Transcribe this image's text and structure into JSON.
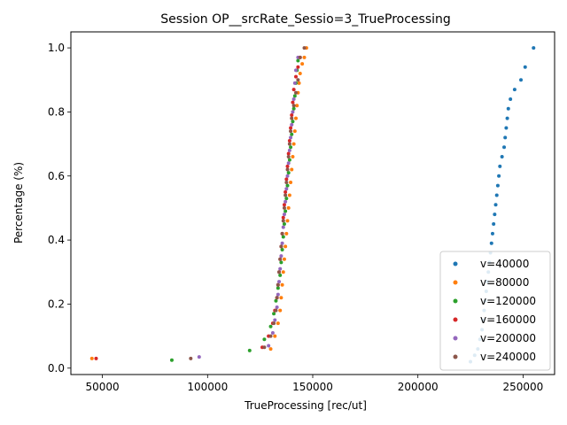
{
  "chart_data": {
    "type": "scatter",
    "title": "Session OP__srcRate_Sessio=3_TrueProcessing",
    "xlabel": "TrueProcessing [rec/ut]",
    "ylabel": "Percentage (%)",
    "xlim": [
      35000,
      265000
    ],
    "ylim": [
      -0.02,
      1.05
    ],
    "xticks": [
      50000,
      100000,
      150000,
      200000,
      250000
    ],
    "xtick_labels": [
      "50000",
      "100000",
      "150000",
      "200000",
      "250000"
    ],
    "yticks": [
      0.0,
      0.2,
      0.4,
      0.6,
      0.8,
      1.0
    ],
    "ytick_labels": [
      "0.0",
      "0.2",
      "0.4",
      "0.6",
      "0.8",
      "1.0"
    ],
    "grid": false,
    "legend_position": "lower-right",
    "series": [
      {
        "name": "v=40000",
        "color": "#1f77b4",
        "x": [
          225000,
          227000,
          228500,
          229500,
          230500,
          231000,
          231500,
          232000,
          232500,
          233000,
          233500,
          234000,
          234500,
          235000,
          235500,
          236000,
          236500,
          237000,
          237500,
          238000,
          238500,
          239000,
          240000,
          241000,
          241500,
          242000,
          242500,
          243000,
          244000,
          246000,
          249000,
          251000,
          255000
        ],
        "y": [
          0.02,
          0.04,
          0.06,
          0.09,
          0.12,
          0.15,
          0.18,
          0.21,
          0.24,
          0.27,
          0.3,
          0.33,
          0.36,
          0.39,
          0.42,
          0.45,
          0.48,
          0.51,
          0.54,
          0.57,
          0.6,
          0.63,
          0.66,
          0.69,
          0.72,
          0.75,
          0.78,
          0.81,
          0.84,
          0.87,
          0.9,
          0.94,
          1.0
        ]
      },
      {
        "name": "v=80000",
        "color": "#ff7f0e",
        "x": [
          45000,
          130000,
          132000,
          133500,
          134500,
          135000,
          135500,
          136000,
          136500,
          137000,
          137500,
          138000,
          138500,
          139000,
          139500,
          140000,
          140500,
          141000,
          141500,
          142000,
          142500,
          143000,
          143500,
          144000,
          145000,
          146000,
          147000
        ],
        "y": [
          0.03,
          0.06,
          0.1,
          0.14,
          0.18,
          0.22,
          0.26,
          0.3,
          0.34,
          0.38,
          0.42,
          0.46,
          0.5,
          0.54,
          0.58,
          0.62,
          0.66,
          0.7,
          0.74,
          0.78,
          0.82,
          0.86,
          0.89,
          0.92,
          0.95,
          0.97,
          1.0
        ]
      },
      {
        "name": "v=120000",
        "color": "#2ca02c",
        "x": [
          83000,
          120000,
          127000,
          130000,
          131500,
          132500,
          133500,
          134500,
          135000,
          135500,
          136000,
          136500,
          137000,
          137500,
          138000,
          138500,
          139000,
          139500,
          140000,
          140500,
          141000,
          141500,
          142000,
          142500,
          143000
        ],
        "y": [
          0.025,
          0.055,
          0.09,
          0.13,
          0.17,
          0.21,
          0.25,
          0.29,
          0.33,
          0.37,
          0.41,
          0.45,
          0.49,
          0.53,
          0.57,
          0.61,
          0.65,
          0.69,
          0.73,
          0.77,
          0.81,
          0.85,
          0.89,
          0.93,
          0.96
        ]
      },
      {
        "name": "v=160000",
        "color": "#d62728",
        "x": [
          47000,
          126000,
          129000,
          131000,
          132000,
          133000,
          133500,
          134000,
          134500,
          135000,
          135500,
          136000,
          136500,
          137000,
          137500,
          138000,
          138500,
          139000,
          139500,
          140000,
          140500,
          141000,
          142000,
          143000,
          144000
        ],
        "y": [
          0.03,
          0.065,
          0.1,
          0.14,
          0.18,
          0.22,
          0.26,
          0.3,
          0.34,
          0.38,
          0.42,
          0.47,
          0.51,
          0.55,
          0.59,
          0.63,
          0.67,
          0.71,
          0.75,
          0.79,
          0.83,
          0.87,
          0.91,
          0.94,
          0.97
        ]
      },
      {
        "name": "v=200000",
        "color": "#9467bd",
        "x": [
          96000,
          129000,
          131000,
          132000,
          133000,
          133500,
          134000,
          134500,
          135000,
          135500,
          136000,
          136500,
          137000,
          137500,
          138000,
          138500,
          139000,
          139500,
          140000,
          140500,
          141000,
          141500,
          142000,
          143000
        ],
        "y": [
          0.035,
          0.07,
          0.11,
          0.15,
          0.19,
          0.23,
          0.27,
          0.31,
          0.35,
          0.39,
          0.44,
          0.48,
          0.52,
          0.56,
          0.6,
          0.64,
          0.68,
          0.72,
          0.76,
          0.8,
          0.84,
          0.89,
          0.93,
          0.97
        ]
      },
      {
        "name": "v=240000",
        "color": "#8c564b",
        "x": [
          92000,
          127000,
          130000,
          131500,
          132500,
          133000,
          133500,
          134000,
          134500,
          135000,
          135500,
          136000,
          136500,
          137000,
          137500,
          138000,
          138500,
          139000,
          139500,
          140000,
          141000,
          142000,
          143000,
          144000,
          146000
        ],
        "y": [
          0.03,
          0.065,
          0.1,
          0.14,
          0.18,
          0.22,
          0.26,
          0.3,
          0.34,
          0.38,
          0.42,
          0.46,
          0.5,
          0.54,
          0.58,
          0.62,
          0.66,
          0.7,
          0.74,
          0.78,
          0.82,
          0.86,
          0.9,
          0.97,
          1.0
        ]
      }
    ]
  }
}
